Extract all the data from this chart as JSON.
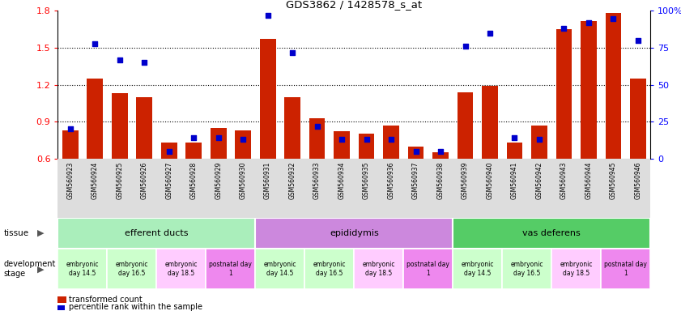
{
  "title": "GDS3862 / 1428578_s_at",
  "samples": [
    "GSM560923",
    "GSM560924",
    "GSM560925",
    "GSM560926",
    "GSM560927",
    "GSM560928",
    "GSM560929",
    "GSM560930",
    "GSM560931",
    "GSM560932",
    "GSM560933",
    "GSM560934",
    "GSM560935",
    "GSM560936",
    "GSM560937",
    "GSM560938",
    "GSM560939",
    "GSM560940",
    "GSM560941",
    "GSM560942",
    "GSM560943",
    "GSM560944",
    "GSM560945",
    "GSM560946"
  ],
  "bar_values": [
    0.83,
    1.25,
    1.13,
    1.1,
    0.73,
    0.73,
    0.85,
    0.83,
    1.57,
    1.1,
    0.93,
    0.82,
    0.8,
    0.87,
    0.7,
    0.65,
    1.14,
    1.19,
    0.73,
    0.87,
    1.65,
    1.72,
    1.78,
    1.25
  ],
  "percentile_rank": [
    20,
    78,
    67,
    65,
    5,
    14,
    14,
    13,
    97,
    72,
    22,
    13,
    13,
    13,
    5,
    5,
    76,
    85,
    14,
    13,
    88,
    92,
    95,
    80
  ],
  "ylim_left": [
    0.6,
    1.8
  ],
  "ylim_right": [
    0,
    100
  ],
  "bar_color": "#cc2200",
  "dot_color": "#0000cc",
  "bar_bottom": 0.6,
  "tissues": [
    {
      "label": "efferent ducts",
      "start": 0,
      "end": 8,
      "color": "#aaeebb"
    },
    {
      "label": "epididymis",
      "start": 8,
      "end": 16,
      "color": "#cc88dd"
    },
    {
      "label": "vas deferens",
      "start": 16,
      "end": 24,
      "color": "#55cc66"
    }
  ],
  "dev_stages": [
    {
      "label": "embryonic\nday 14.5",
      "start": 0,
      "end": 2,
      "color": "#ccffcc"
    },
    {
      "label": "embryonic\nday 16.5",
      "start": 2,
      "end": 4,
      "color": "#ccffcc"
    },
    {
      "label": "embryonic\nday 18.5",
      "start": 4,
      "end": 6,
      "color": "#ffccff"
    },
    {
      "label": "postnatal day\n1",
      "start": 6,
      "end": 8,
      "color": "#ee88ee"
    },
    {
      "label": "embryonic\nday 14.5",
      "start": 8,
      "end": 10,
      "color": "#ccffcc"
    },
    {
      "label": "embryonic\nday 16.5",
      "start": 10,
      "end": 12,
      "color": "#ccffcc"
    },
    {
      "label": "embryonic\nday 18.5",
      "start": 12,
      "end": 14,
      "color": "#ffccff"
    },
    {
      "label": "postnatal day\n1",
      "start": 14,
      "end": 16,
      "color": "#ee88ee"
    },
    {
      "label": "embryonic\nday 14.5",
      "start": 16,
      "end": 18,
      "color": "#ccffcc"
    },
    {
      "label": "embryonic\nday 16.5",
      "start": 18,
      "end": 20,
      "color": "#ccffcc"
    },
    {
      "label": "embryonic\nday 18.5",
      "start": 20,
      "end": 22,
      "color": "#ffccff"
    },
    {
      "label": "postnatal day\n1",
      "start": 22,
      "end": 24,
      "color": "#ee88ee"
    }
  ],
  "legend_bar": "transformed count",
  "legend_dot": "percentile rank within the sample",
  "right_yticks": [
    0,
    25,
    50,
    75,
    100
  ],
  "right_yticklabels": [
    "0",
    "25",
    "50",
    "75",
    "100%"
  ],
  "left_yticks": [
    0.6,
    0.9,
    1.2,
    1.5,
    1.8
  ],
  "hgrid_lines": [
    0.9,
    1.2,
    1.5
  ],
  "xlabel_area_color": "#dddddd",
  "tissue_label_color": "#aaeebb",
  "epididymis_color": "#cc88dd",
  "vasdeferens_color": "#55cc66"
}
